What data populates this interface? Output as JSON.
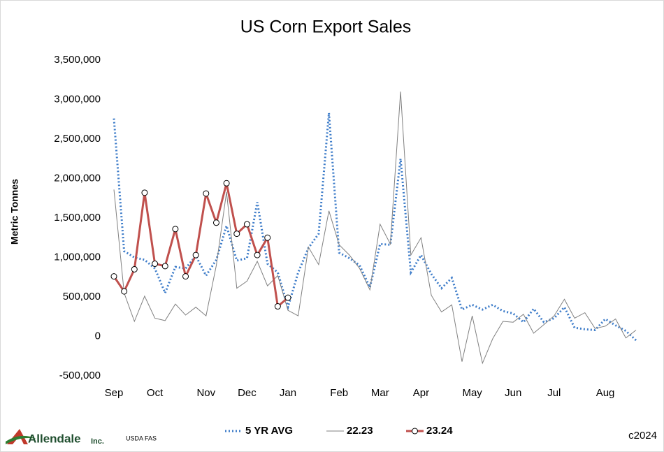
{
  "chart_data": {
    "type": "line",
    "title": "US Corn Export Sales",
    "y_label": "Metric Tonnes",
    "categories": [
      "Sep",
      null,
      null,
      null,
      "Oct",
      null,
      null,
      null,
      null,
      "Nov",
      null,
      null,
      null,
      "Dec",
      null,
      null,
      null,
      "Jan",
      null,
      null,
      null,
      null,
      "Feb",
      null,
      null,
      null,
      "Mar",
      null,
      null,
      null,
      "Apr",
      null,
      null,
      null,
      null,
      "May",
      null,
      null,
      null,
      "Jun",
      null,
      null,
      null,
      "Jul",
      null,
      null,
      null,
      null,
      "Aug",
      null,
      null,
      null
    ],
    "ylim": [
      -500000,
      3500000
    ],
    "yticks": [
      {
        "value": -500000,
        "label": "-500,000"
      },
      0,
      {
        "value": 500000,
        "label": "500,000"
      },
      {
        "value": 1000000,
        "label": "1,000,000"
      },
      {
        "value": 1500000,
        "label": "1,500,000"
      },
      {
        "value": 2000000,
        "label": "2,000,000"
      },
      {
        "value": 2500000,
        "label": "2,500,000"
      },
      {
        "value": 3000000,
        "label": "3,000,000"
      },
      {
        "value": 3500000,
        "label": "3,500,000"
      }
    ],
    "grid": false,
    "legend": "bottom",
    "series": [
      {
        "name": "5 YR AVG",
        "color": "#3d7cc9",
        "style": "dotted",
        "values": [
          2760000,
          1080000,
          1000000,
          970000,
          860000,
          550000,
          880000,
          860000,
          1020000,
          770000,
          970000,
          1400000,
          960000,
          990000,
          1700000,
          920000,
          810000,
          370000,
          810000,
          1120000,
          1300000,
          2830000,
          1060000,
          990000,
          900000,
          620000,
          1170000,
          1160000,
          2250000,
          810000,
          1030000,
          790000,
          610000,
          740000,
          340000,
          400000,
          340000,
          400000,
          320000,
          290000,
          180000,
          350000,
          180000,
          230000,
          370000,
          110000,
          90000,
          80000,
          220000,
          140000,
          70000,
          -50000
        ]
      },
      {
        "name": "22.23",
        "color": "#808080",
        "style": "solid",
        "values": [
          1860000,
          550000,
          190000,
          510000,
          230000,
          200000,
          410000,
          270000,
          370000,
          260000,
          900000,
          1830000,
          610000,
          700000,
          950000,
          640000,
          770000,
          330000,
          260000,
          1130000,
          910000,
          1590000,
          1160000,
          1030000,
          860000,
          590000,
          1420000,
          1170000,
          3100000,
          1030000,
          1250000,
          520000,
          310000,
          400000,
          -320000,
          260000,
          -340000,
          -30000,
          190000,
          180000,
          280000,
          40000,
          150000,
          260000,
          470000,
          230000,
          300000,
          100000,
          130000,
          220000,
          -20000,
          80000
        ]
      },
      {
        "name": "23.24",
        "color": "#c0504d",
        "style": "marker",
        "values": [
          760000,
          570000,
          850000,
          1820000,
          920000,
          890000,
          1360000,
          760000,
          1030000,
          1810000,
          1440000,
          1940000,
          1300000,
          1420000,
          1030000,
          1250000,
          380000,
          490000,
          null,
          null,
          null,
          null,
          null,
          null,
          null,
          null,
          null,
          null,
          null,
          null,
          null,
          null,
          null,
          null,
          null,
          null,
          null,
          null,
          null,
          null,
          null,
          null,
          null,
          null,
          null,
          null,
          null,
          null,
          null,
          null,
          null,
          null
        ]
      }
    ],
    "logo": "Allendale",
    "logo_suffix": "Inc.",
    "source": "USDA FAS",
    "copyright": "c2024"
  }
}
